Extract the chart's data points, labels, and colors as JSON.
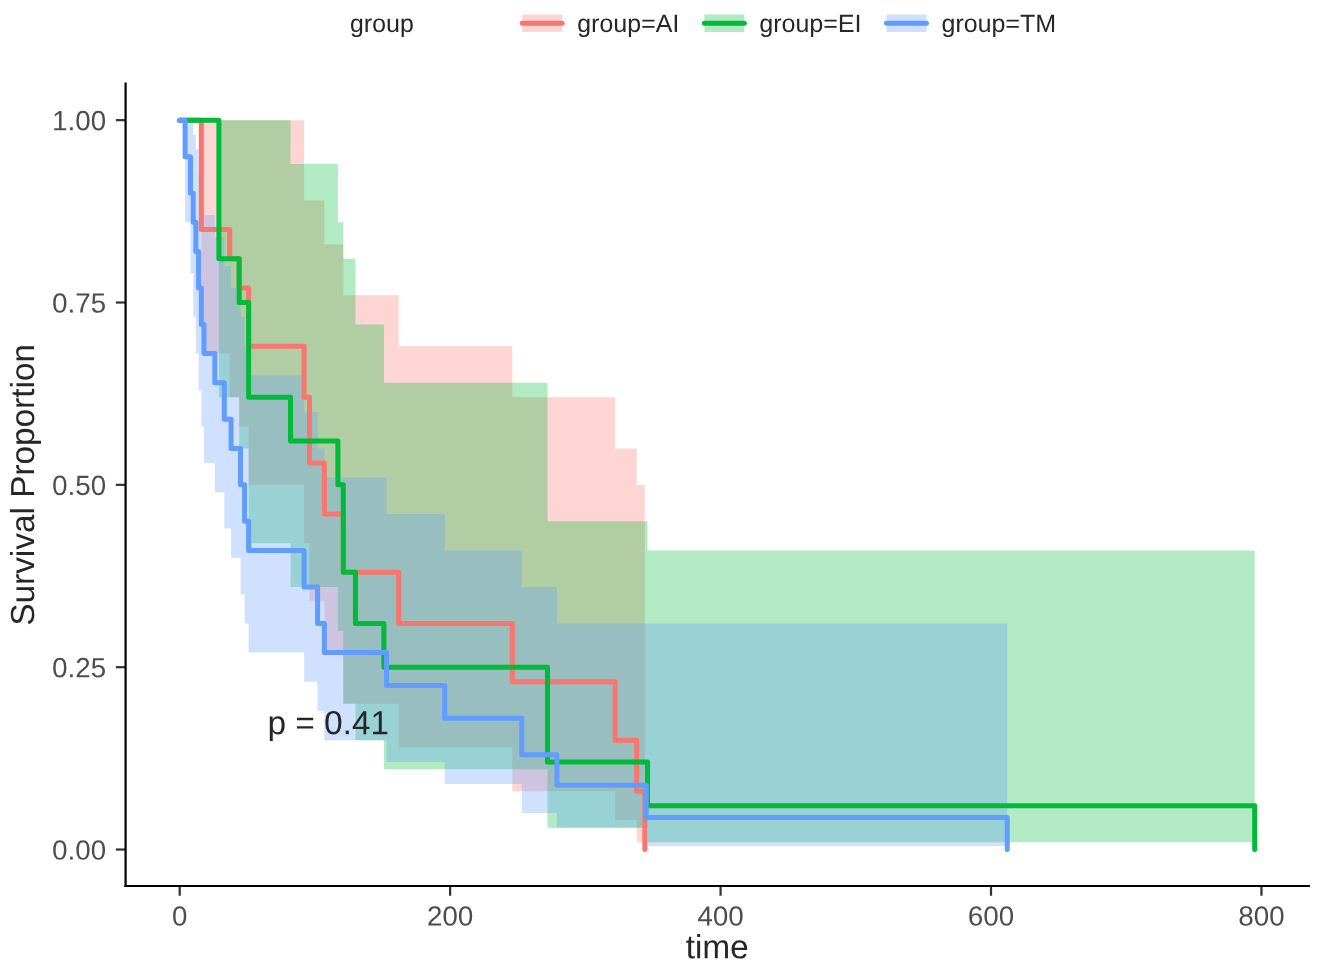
{
  "chart_data": {
    "type": "step",
    "xlabel": "time",
    "ylabel": "Survival Proportion",
    "legend_title": "group",
    "legend": "top",
    "grid": false,
    "xlim": [
      -40,
      835
    ],
    "xticks": [
      0,
      200,
      400,
      600,
      800
    ],
    "ylim": [
      -0.05,
      1.05
    ],
    "yticks": [
      {
        "value": 0,
        "label": "0.00"
      },
      {
        "value": 0.25,
        "label": "0.25"
      },
      {
        "value": 0.5,
        "label": "0.50"
      },
      {
        "value": 0.75,
        "label": "0.75"
      },
      {
        "value": 1,
        "label": "1.00"
      }
    ],
    "annotations": [
      "p = 0.41"
    ],
    "series": [
      {
        "name": "group=AI",
        "color": "#f8766d",
        "x": [
          0,
          16,
          37,
          44,
          51,
          92,
          96,
          107,
          121,
          162,
          246,
          322,
          338,
          344
        ],
        "values": [
          1,
          0.85,
          0.81,
          0.77,
          0.69,
          0.62,
          0.53,
          0.46,
          0.38,
          0.31,
          0.23,
          0.15,
          0.08,
          0
        ],
        "upper": [
          1,
          1,
          1,
          1,
          1,
          0.89,
          0.89,
          0.83,
          0.76,
          0.69,
          0.62,
          0.55,
          0.5,
          0.5
        ],
        "lower": [
          1,
          0.68,
          0.62,
          0.58,
          0.5,
          0.42,
          0.34,
          0.27,
          0.2,
          0.14,
          0.08,
          0.04,
          0.01,
          0.01
        ]
      },
      {
        "name": "group=EI",
        "color": "#00ba38",
        "x": [
          0,
          29,
          44,
          51,
          82,
          117,
          121,
          130,
          151,
          272,
          346,
          795
        ],
        "values": [
          1,
          0.81,
          0.75,
          0.62,
          0.56,
          0.5,
          0.38,
          0.31,
          0.25,
          0.12,
          0.06,
          0
        ],
        "upper": [
          1,
          1,
          1,
          1,
          0.94,
          0.86,
          0.81,
          0.72,
          0.64,
          0.45,
          0.41,
          0.41
        ],
        "lower": [
          1,
          0.62,
          0.55,
          0.42,
          0.36,
          0.3,
          0.2,
          0.15,
          0.11,
          0.03,
          0.01,
          0.01
        ]
      },
      {
        "name": "group=TM",
        "color": "#619cff",
        "x": [
          0,
          4,
          8,
          10,
          12,
          14,
          16,
          18,
          26,
          33,
          38,
          45,
          48,
          51,
          92,
          102,
          107,
          153,
          196,
          253,
          279,
          345,
          612
        ],
        "values": [
          1,
          0.95,
          0.9,
          0.86,
          0.82,
          0.77,
          0.72,
          0.68,
          0.64,
          0.59,
          0.55,
          0.5,
          0.45,
          0.41,
          0.36,
          0.31,
          0.27,
          0.225,
          0.18,
          0.13,
          0.088,
          0.044,
          0
        ],
        "upper": [
          1,
          1,
          1,
          0.98,
          0.96,
          0.93,
          0.9,
          0.87,
          0.84,
          0.8,
          0.77,
          0.73,
          0.69,
          0.65,
          0.6,
          0.55,
          0.51,
          0.46,
          0.41,
          0.36,
          0.31,
          0.31,
          0.31
        ],
        "lower": [
          1,
          0.86,
          0.79,
          0.73,
          0.68,
          0.63,
          0.58,
          0.53,
          0.49,
          0.44,
          0.4,
          0.35,
          0.31,
          0.27,
          0.23,
          0.19,
          0.15,
          0.12,
          0.09,
          0.05,
          0.03,
          0.005,
          0.005
        ]
      }
    ]
  }
}
